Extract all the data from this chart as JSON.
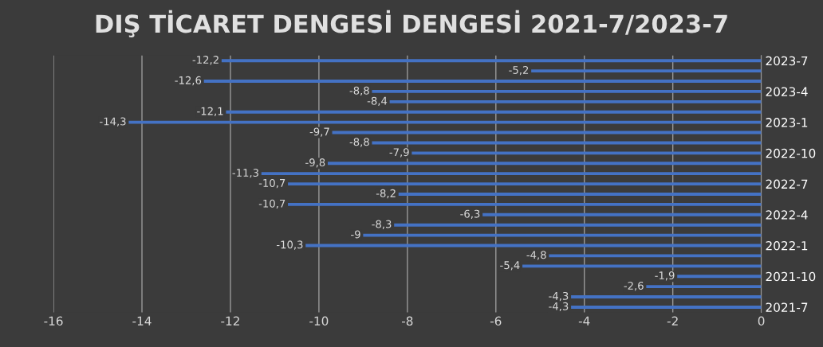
{
  "chart_data": {
    "type": "bar",
    "orientation": "horizontal",
    "title": "DIŞ TİCARET DENGESİ DENGESİ 2021-7/2023-7",
    "categories": [
      "2023-7",
      null,
      null,
      "2023-4",
      null,
      null,
      "2023-1",
      null,
      null,
      "2022-10",
      null,
      null,
      "2022-7",
      null,
      null,
      "2022-4",
      null,
      null,
      "2022-1",
      null,
      null,
      "2021-10",
      null,
      null,
      "2021-7"
    ],
    "values": [
      -12.2,
      -5.2,
      -12.6,
      -8.8,
      -8.4,
      -12.1,
      -14.3,
      -9.7,
      -8.8,
      -7.9,
      -9.8,
      -11.3,
      -10.7,
      -8.2,
      -10.7,
      -6.3,
      -8.3,
      -9,
      -10.3,
      -4.8,
      -5.4,
      -1.9,
      -2.6,
      -4.3,
      -4.3
    ],
    "value_labels": [
      "-12,2",
      "-5,2",
      "-12,6",
      "-8,8",
      "-8,4",
      "-12,1",
      "-14,3",
      "-9,7",
      "-8,8",
      "-7,9",
      "-9,8",
      "-11,3",
      "-10,7",
      "-8,2",
      "-10,7",
      "-6,3",
      "-8,3",
      "-9",
      "-10,3",
      "-4,8",
      "-5,4",
      "-1,9",
      "-2,6",
      "-4,3",
      "-4,3"
    ],
    "color": "#4472c4",
    "xlim": [
      -16,
      0
    ],
    "xticks": [
      -16,
      -14,
      -12,
      -10,
      -8,
      -6,
      -4,
      -2,
      0
    ],
    "grid": "x",
    "legend": false
  }
}
